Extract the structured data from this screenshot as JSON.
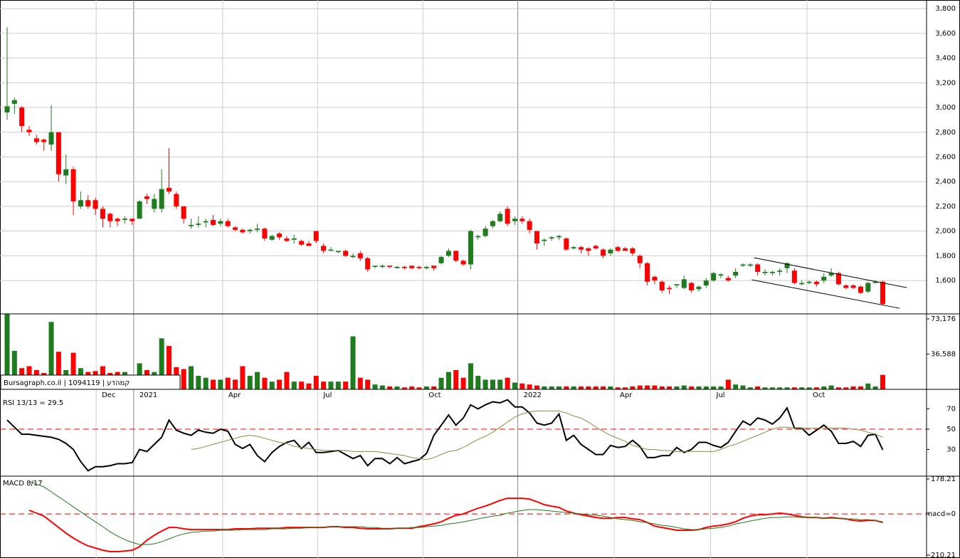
{
  "chart_data": [
    {
      "type": "candlestick",
      "up_color": "#1e7b1e",
      "down_color": "#ff0000",
      "open": [
        2960,
        3030,
        3000,
        2820,
        2750,
        2740,
        2700,
        2800,
        2450,
        2500,
        2200,
        2250,
        2250,
        2180,
        2140,
        2100,
        2090,
        2100,
        2100,
        2280,
        2180,
        2180,
        2350,
        2300,
        2200,
        2040,
        2050,
        2070,
        2090,
        2060,
        2080,
        2030,
        2010,
        2000,
        2010,
        2020,
        1930,
        1980,
        1940,
        1930,
        1920,
        1900,
        2000,
        1880,
        1840,
        1830,
        1840,
        1790,
        1820,
        1780,
        1710,
        1710,
        1720,
        1700,
        1710,
        1720,
        1710,
        1700,
        1720,
        1740,
        1800,
        1840,
        1760,
        1730,
        1950,
        1960,
        2040,
        2080,
        2180,
        2080,
        2100,
        2080,
        2000,
        1920,
        1940,
        1950,
        1940,
        1860,
        1870,
        1860,
        1880,
        1850,
        1820,
        1870,
        1860,
        1860,
        1800,
        1740,
        1630,
        1590,
        1540,
        1560,
        1540,
        1580,
        1530,
        1560,
        1600,
        1640,
        1620,
        1640,
        1720,
        1720,
        1730,
        1660,
        1660,
        1670,
        1700,
        1680,
        1570,
        1580,
        1590,
        1600,
        1640,
        1660,
        1560,
        1560,
        1550,
        1510,
        1580,
        1590
      ],
      "high": [
        3650,
        3080,
        3010,
        2850,
        2780,
        2750,
        3020,
        2800,
        2620,
        2520,
        2320,
        2290,
        2270,
        2200,
        2150,
        2110,
        2120,
        2100,
        2250,
        2300,
        2300,
        2500,
        2670,
        2320,
        2200,
        2100,
        2120,
        2100,
        2130,
        2100,
        2100,
        2040,
        2020,
        2020,
        2060,
        2030,
        1970,
        1990,
        1960,
        1970,
        1930,
        1920,
        2000,
        1900,
        1870,
        1840,
        1850,
        1820,
        1840,
        1790,
        1720,
        1730,
        1720,
        1720,
        1720,
        1720,
        1720,
        1720,
        1720,
        1800,
        1860,
        1840,
        1770,
        2010,
        1970,
        2040,
        2090,
        2160,
        2200,
        2120,
        2120,
        2100,
        2000,
        1940,
        1960,
        1970,
        1950,
        1880,
        1880,
        1870,
        1890,
        1860,
        1860,
        1880,
        1870,
        1870,
        1810,
        1750,
        1640,
        1600,
        1560,
        1570,
        1640,
        1590,
        1560,
        1620,
        1670,
        1660,
        1640,
        1700,
        1740,
        1740,
        1740,
        1690,
        1680,
        1700,
        1750,
        1700,
        1600,
        1600,
        1600,
        1660,
        1700,
        1670,
        1570,
        1570,
        1560,
        1590,
        1600,
        1600
      ],
      "low": [
        2900,
        2950,
        2800,
        2770,
        2700,
        2650,
        2650,
        2400,
        2380,
        2130,
        2180,
        2180,
        2130,
        2030,
        2030,
        2040,
        2060,
        2050,
        2100,
        2220,
        2150,
        2150,
        2300,
        2180,
        2060,
        2020,
        2030,
        2030,
        2040,
        2040,
        2030,
        2000,
        1980,
        1980,
        1990,
        1920,
        1920,
        1930,
        1910,
        1900,
        1880,
        1880,
        1900,
        1820,
        1840,
        1820,
        1790,
        1780,
        1760,
        1670,
        1700,
        1700,
        1700,
        1700,
        1690,
        1690,
        1690,
        1690,
        1680,
        1730,
        1790,
        1750,
        1720,
        1690,
        1930,
        1950,
        2020,
        2070,
        2040,
        2050,
        2060,
        1980,
        1850,
        1880,
        1920,
        1930,
        1840,
        1850,
        1820,
        1800,
        1850,
        1780,
        1800,
        1830,
        1840,
        1800,
        1700,
        1560,
        1570,
        1500,
        1490,
        1540,
        1530,
        1500,
        1510,
        1540,
        1590,
        1620,
        1590,
        1620,
        1710,
        1710,
        1640,
        1640,
        1640,
        1640,
        1660,
        1570,
        1560,
        1570,
        1550,
        1580,
        1630,
        1560,
        1530,
        1530,
        1490,
        1500,
        1580,
        1400
      ],
      "close": [
        3010,
        3060,
        2850,
        2800,
        2720,
        2720,
        2800,
        2460,
        2500,
        2240,
        2250,
        2200,
        2180,
        2100,
        2080,
        2080,
        2100,
        2080,
        2240,
        2260,
        2260,
        2340,
        2320,
        2200,
        2100,
        2050,
        2060,
        2080,
        2050,
        2080,
        2040,
        2010,
        1990,
        2010,
        2020,
        1940,
        1960,
        1950,
        1920,
        1940,
        1890,
        1880,
        1920,
        1840,
        1850,
        1840,
        1800,
        1800,
        1780,
        1690,
        1720,
        1720,
        1710,
        1710,
        1700,
        1700,
        1700,
        1710,
        1700,
        1790,
        1840,
        1760,
        1730,
        2000,
        1960,
        2020,
        2080,
        2140,
        2060,
        2100,
        2080,
        2010,
        1900,
        1930,
        1950,
        1960,
        1850,
        1870,
        1850,
        1840,
        1860,
        1800,
        1850,
        1840,
        1840,
        1820,
        1740,
        1590,
        1600,
        1520,
        1530,
        1570,
        1610,
        1520,
        1550,
        1600,
        1660,
        1650,
        1600,
        1670,
        1730,
        1730,
        1670,
        1670,
        1670,
        1680,
        1740,
        1580,
        1580,
        1590,
        1570,
        1630,
        1660,
        1570,
        1540,
        1540,
        1500,
        1580,
        1590,
        1410
      ],
      "ylim": [
        1330,
        3870
      ],
      "yticks": [
        {
          "value": 1600,
          "label": "1,600"
        },
        {
          "value": 1800,
          "label": "1,800"
        },
        {
          "value": 2000,
          "label": "2,000"
        },
        {
          "value": 2200,
          "label": "2,200"
        },
        {
          "value": 2400,
          "label": "2,400"
        },
        {
          "value": 2600,
          "label": "2,600"
        },
        {
          "value": 2800,
          "label": "2,800"
        },
        {
          "value": 3000,
          "label": "3,000"
        },
        {
          "value": 3200,
          "label": "3,200"
        },
        {
          "value": 3400,
          "label": "3,400"
        },
        {
          "value": 3600,
          "label": "3,600"
        },
        {
          "value": 3800,
          "label": "3,800"
        }
      ],
      "grid": true,
      "trendlines": [
        {
          "x": [
            101.5,
            122.3
          ],
          "y": [
            1784,
            1542
          ]
        },
        {
          "x": [
            101.2,
            121.3
          ],
          "y": [
            1606,
            1375
          ]
        }
      ]
    },
    {
      "type": "bar",
      "annotation": "Bursagraph.co.il | 1094119 | קמהדע",
      "values": [
        78000,
        40000,
        22000,
        24000,
        20000,
        17000,
        70000,
        39000,
        20000,
        38000,
        22000,
        18000,
        19000,
        24000,
        17000,
        18000,
        18000,
        12000,
        27000,
        20000,
        18000,
        53000,
        45000,
        23000,
        21000,
        24000,
        14000,
        12000,
        10000,
        10000,
        12000,
        10000,
        24000,
        14000,
        18000,
        12000,
        8000,
        10000,
        18000,
        8000,
        8000,
        6000,
        14000,
        8000,
        8000,
        8000,
        8000,
        55000,
        12000,
        10000,
        5000,
        4000,
        3000,
        3000,
        2000,
        3000,
        2000,
        3000,
        3000,
        12000,
        18000,
        20000,
        12000,
        27000,
        14000,
        10000,
        10000,
        10000,
        12000,
        7000,
        6000,
        5000,
        4000,
        3000,
        3000,
        3000,
        3000,
        3000,
        3000,
        3000,
        3000,
        3000,
        3000,
        2000,
        2000,
        3000,
        4000,
        4000,
        4000,
        3000,
        3000,
        3000,
        4000,
        3000,
        3000,
        3000,
        3000,
        3000,
        10000,
        5000,
        4000,
        2000,
        3000,
        2000,
        2000,
        2000,
        2000,
        2000,
        2000,
        2000,
        2000,
        3000,
        4000,
        2000,
        2000,
        3000,
        3000,
        6000,
        3000,
        15000
      ],
      "ylim": [
        0,
        78350
      ],
      "yticks": [
        {
          "value": 36588,
          "label": "36,588"
        },
        {
          "value": 73176,
          "label": "73,176"
        }
      ],
      "xticks": [
        {
          "value": 12.1,
          "label": "Dec"
        },
        {
          "value": 17.2,
          "label": "2021"
        },
        {
          "value": 29.3,
          "label": "Apr"
        },
        {
          "value": 42.2,
          "label": "Jul"
        },
        {
          "value": 56.5,
          "label": "Oct"
        },
        {
          "value": 69.4,
          "label": "2022"
        },
        {
          "value": 82.5,
          "label": "Apr"
        },
        {
          "value": 95.6,
          "label": "Jul"
        },
        {
          "value": 108.7,
          "label": "Oct"
        }
      ]
    },
    {
      "type": "line",
      "title": "RSI 13/13 = 29.5",
      "series": [
        {
          "color": "#000000",
          "values": [
            59,
            52,
            45,
            45,
            44,
            43,
            42,
            40,
            36,
            30,
            18,
            9,
            13,
            13,
            14,
            16,
            16,
            17,
            30,
            28,
            35,
            42,
            59,
            49,
            46,
            44,
            49,
            47,
            46,
            50,
            48,
            35,
            31,
            35,
            24,
            18,
            27,
            33,
            37,
            39,
            31,
            37,
            27,
            27,
            28,
            29,
            25,
            21,
            24,
            14,
            21,
            21,
            16,
            22,
            16,
            18,
            20,
            26,
            44,
            54,
            64,
            54,
            61,
            74,
            70,
            74,
            77,
            76,
            79,
            72,
            72,
            66,
            56,
            54,
            56,
            65,
            39,
            44,
            35,
            30,
            25,
            25,
            34,
            32,
            33,
            39,
            33,
            22,
            22,
            24,
            24,
            32,
            27,
            30,
            37,
            37,
            34,
            32,
            37,
            48,
            58,
            54,
            61,
            59,
            55,
            61,
            71,
            51,
            51,
            44,
            49,
            54,
            48,
            36,
            36,
            38,
            33,
            44,
            45,
            29.5
          ]
        },
        {
          "color": "#8c8a3c",
          "values": [
            null,
            null,
            null,
            null,
            null,
            null,
            null,
            null,
            null,
            null,
            null,
            null,
            null,
            null,
            null,
            null,
            null,
            null,
            null,
            null,
            null,
            null,
            null,
            null,
            null,
            30,
            31,
            33,
            35,
            37,
            39,
            41,
            43,
            44,
            43,
            41,
            39,
            37,
            36,
            33,
            32,
            31,
            30,
            29,
            29,
            29,
            29,
            28,
            28,
            28,
            28,
            27,
            26,
            25,
            24,
            22,
            21,
            20,
            22,
            25,
            28,
            29,
            32,
            36,
            40,
            43,
            47,
            52,
            57,
            62,
            65,
            67,
            68,
            68,
            68,
            68,
            66,
            63,
            61,
            57,
            52,
            48,
            44,
            41,
            38,
            34,
            32,
            30,
            30,
            29,
            29,
            28,
            28,
            28,
            28,
            28,
            28,
            30,
            33,
            35,
            38,
            41,
            44,
            47,
            50,
            52,
            52,
            51,
            51,
            51,
            51,
            51,
            51,
            51,
            51,
            50,
            49,
            47,
            45,
            42
          ]
        }
      ],
      "ylim": [
        4.4,
        88.6
      ],
      "yticks": [
        30,
        50,
        70
      ],
      "refline": 50
    },
    {
      "type": "line",
      "title": "MACD 8/17",
      "series": [
        {
          "color": "#ff0000",
          "values": [
            null,
            null,
            null,
            18,
            4,
            -11,
            -40,
            -69,
            -98,
            -123,
            -145,
            -163,
            -174,
            -185,
            -192,
            -192,
            -189,
            -185,
            -167,
            -134,
            -109,
            -87,
            -69,
            -69,
            -76,
            -80,
            -80,
            -80,
            -80,
            -80,
            -80,
            -76,
            -76,
            -76,
            -73,
            -73,
            -73,
            -73,
            -69,
            -69,
            -69,
            -69,
            -69,
            -69,
            -65,
            -65,
            -69,
            -69,
            -73,
            -76,
            -76,
            -76,
            -76,
            -73,
            -73,
            -73,
            -65,
            -58,
            -51,
            -40,
            -22,
            -7,
            0,
            15,
            29,
            40,
            54,
            69,
            80,
            80,
            80,
            76,
            62,
            47,
            40,
            33,
            15,
            4,
            -4,
            -11,
            -18,
            -22,
            -22,
            -18,
            -18,
            -25,
            -29,
            -44,
            -62,
            -69,
            -76,
            -83,
            -83,
            -83,
            -80,
            -69,
            -62,
            -58,
            -51,
            -40,
            -22,
            -11,
            -4,
            -4,
            0,
            4,
            0,
            -7,
            -15,
            -18,
            -18,
            -22,
            -18,
            -22,
            -25,
            -33,
            -36,
            -33,
            -33,
            -44
          ]
        },
        {
          "color": "#1e7b1e",
          "values": [
            null,
            null,
            null,
            167,
            152,
            138,
            113,
            87,
            62,
            36,
            11,
            -15,
            -40,
            -65,
            -91,
            -113,
            -131,
            -145,
            -156,
            -156,
            -152,
            -142,
            -127,
            -113,
            -102,
            -94,
            -91,
            -87,
            -87,
            -83,
            -83,
            -83,
            -80,
            -80,
            -80,
            -80,
            -76,
            -76,
            -76,
            -73,
            -73,
            -69,
            -69,
            -69,
            -65,
            -65,
            -65,
            -65,
            -65,
            -69,
            -69,
            -73,
            -73,
            -73,
            -73,
            -69,
            -69,
            -65,
            -62,
            -58,
            -51,
            -47,
            -40,
            -33,
            -25,
            -18,
            -11,
            -7,
            4,
            11,
            18,
            22,
            22,
            18,
            15,
            11,
            7,
            4,
            0,
            -4,
            -7,
            -11,
            -18,
            -25,
            -29,
            -33,
            -40,
            -44,
            -51,
            -58,
            -62,
            -69,
            -76,
            -80,
            -80,
            -76,
            -73,
            -69,
            -62,
            -51,
            -44,
            -36,
            -29,
            -22,
            -18,
            -18,
            -15,
            -15,
            -18,
            -18,
            -18,
            -22,
            -22,
            -22,
            -25,
            -25,
            -29,
            -29,
            -33,
            -40
          ]
        }
      ],
      "ylim": [
        -210.21,
        178.21
      ],
      "yticks": [
        -210.21,
        {
          "value": 0,
          "label": "macd=0"
        },
        178.21
      ],
      "refline": 0
    }
  ]
}
